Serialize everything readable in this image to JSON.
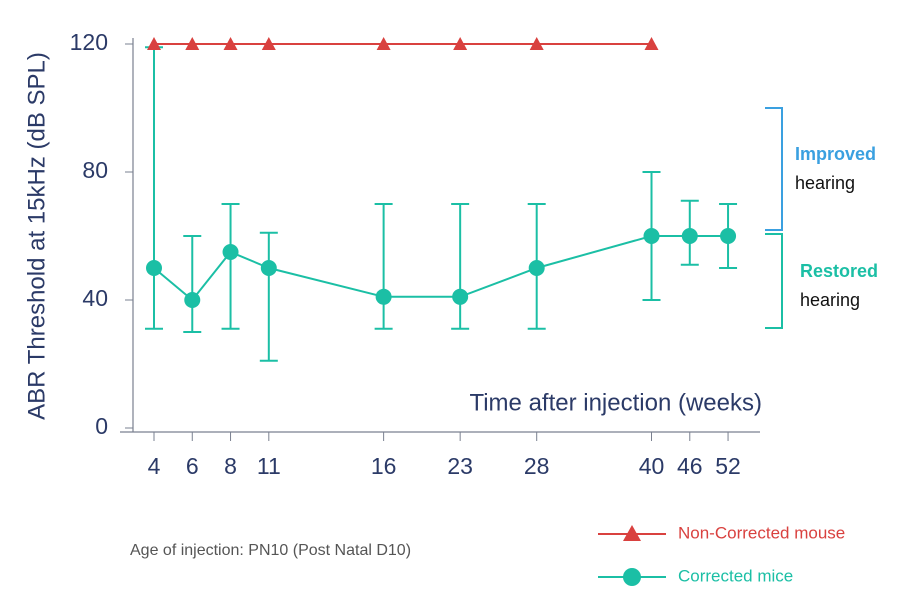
{
  "chart_data": {
    "type": "line",
    "y_label": "ABR Threshold at 15kHz (dB SPL)",
    "x_label": "Time after injection (weeks)",
    "categories": [
      "4",
      "6",
      "8",
      "11",
      "16",
      "23",
      "28",
      "40",
      "46",
      "52"
    ],
    "ylim": [
      0,
      120
    ],
    "yticks": [
      0,
      40,
      80,
      120
    ],
    "series": [
      {
        "name": "Non-Corrected mouse",
        "color": "#d9413f",
        "marker": "triangle",
        "values": [
          120,
          120,
          120,
          120,
          120,
          120,
          120,
          120,
          null,
          null
        ]
      },
      {
        "name": "Corrected mice",
        "color": "#1bbfa5",
        "marker": "circle",
        "values": [
          50,
          40,
          55,
          50,
          41,
          41,
          50,
          60,
          60,
          60
        ],
        "upper": [
          119,
          60,
          70,
          61,
          70,
          70,
          70,
          80,
          71,
          70
        ],
        "lower": [
          31,
          30,
          31,
          21,
          31,
          31,
          31,
          40,
          51,
          50
        ]
      }
    ],
    "annotations": [
      {
        "title": "Improved",
        "text": "hearing"
      },
      {
        "title": "Restored",
        "text": "hearing"
      }
    ],
    "note": "Age of injection: PN10 (Post Natal D10)"
  }
}
